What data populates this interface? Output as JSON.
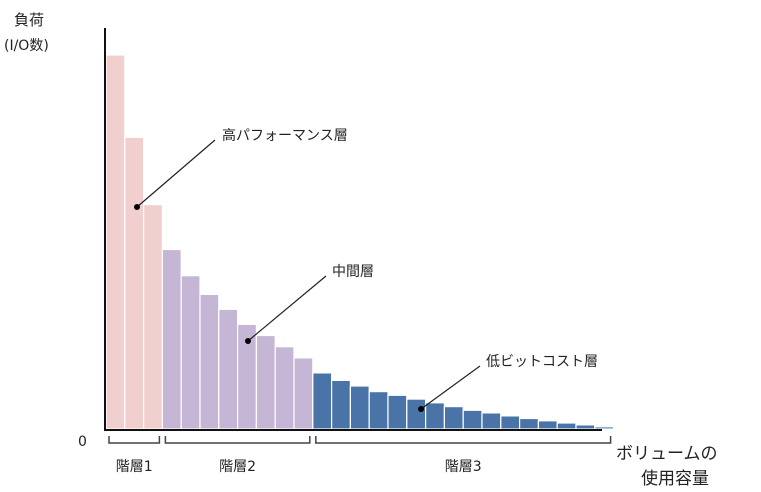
{
  "chart_data": {
    "type": "bar",
    "ylabel_line1": "負荷",
    "ylabel_line2": "(I/O数)",
    "xlabel_line1": "ボリュームの",
    "xlabel_line2": "使用容量",
    "y_zero_label": "0",
    "ylim": [
      0,
      100
    ],
    "tiers": [
      {
        "name": "階層1",
        "annotation": "高パフォーマンス層",
        "color": "#f2cfcf",
        "values": [
          100,
          78,
          60
        ]
      },
      {
        "name": "階層2",
        "annotation": "中間層",
        "color": "#c5b6d6",
        "values": [
          48,
          41,
          36,
          32,
          28,
          25,
          22,
          19
        ]
      },
      {
        "name": "階層3",
        "annotation": "低ビットコスト層",
        "color": "#4a74a8",
        "values": [
          15,
          13,
          11.5,
          10,
          9,
          8,
          7,
          6,
          5,
          4.3,
          3.5,
          2.8,
          2.2,
          1.6,
          1.1,
          0.6
        ]
      }
    ]
  }
}
